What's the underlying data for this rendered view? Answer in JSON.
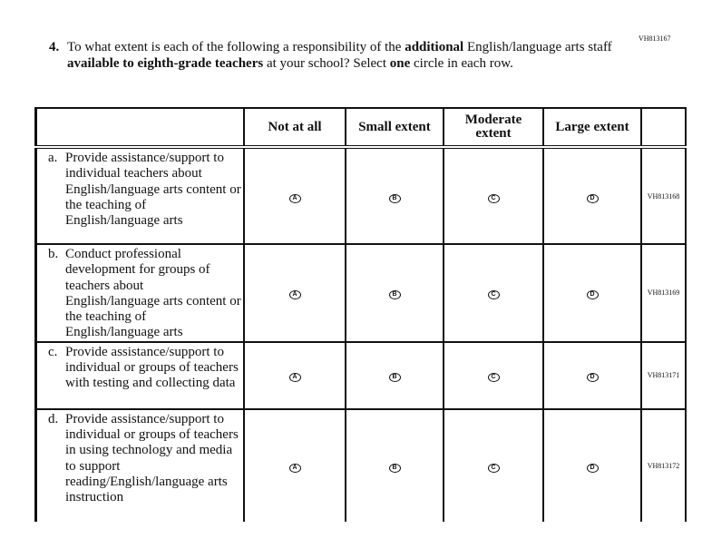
{
  "top_code": "VH813167",
  "question": {
    "number": "4.",
    "text_parts": [
      "To what extent is each of the following a responsibility of the ",
      "additional",
      " English/language arts staff ",
      "available to eighth-grade teachers",
      " at your school? Select ",
      "one",
      " circle in each row."
    ]
  },
  "columns": [
    "",
    "Not at all",
    "Small extent",
    "Moderate extent",
    "Large extent",
    ""
  ],
  "bubbles": [
    "A",
    "B",
    "C",
    "D"
  ],
  "rows": [
    {
      "letter": "a.",
      "text": "Provide assistance/support to individual teachers about English/language arts content or the teaching of English/language arts",
      "code": "VH813168",
      "h": 107
    },
    {
      "letter": "b.",
      "text": "Conduct professional development for groups of teachers about English/language arts content or the teaching of English/language arts",
      "code": "VH813169",
      "h": 107
    },
    {
      "letter": "c.",
      "text": "Provide assistance/support to individual or groups of teachers with testing and collecting data",
      "code": "VH813171",
      "h": 74
    },
    {
      "letter": "d.",
      "text": "Provide assistance/support to individual or groups of teachers in using technology and media to support reading/English/language arts instruction",
      "code": "VH813172",
      "h": 124
    }
  ]
}
